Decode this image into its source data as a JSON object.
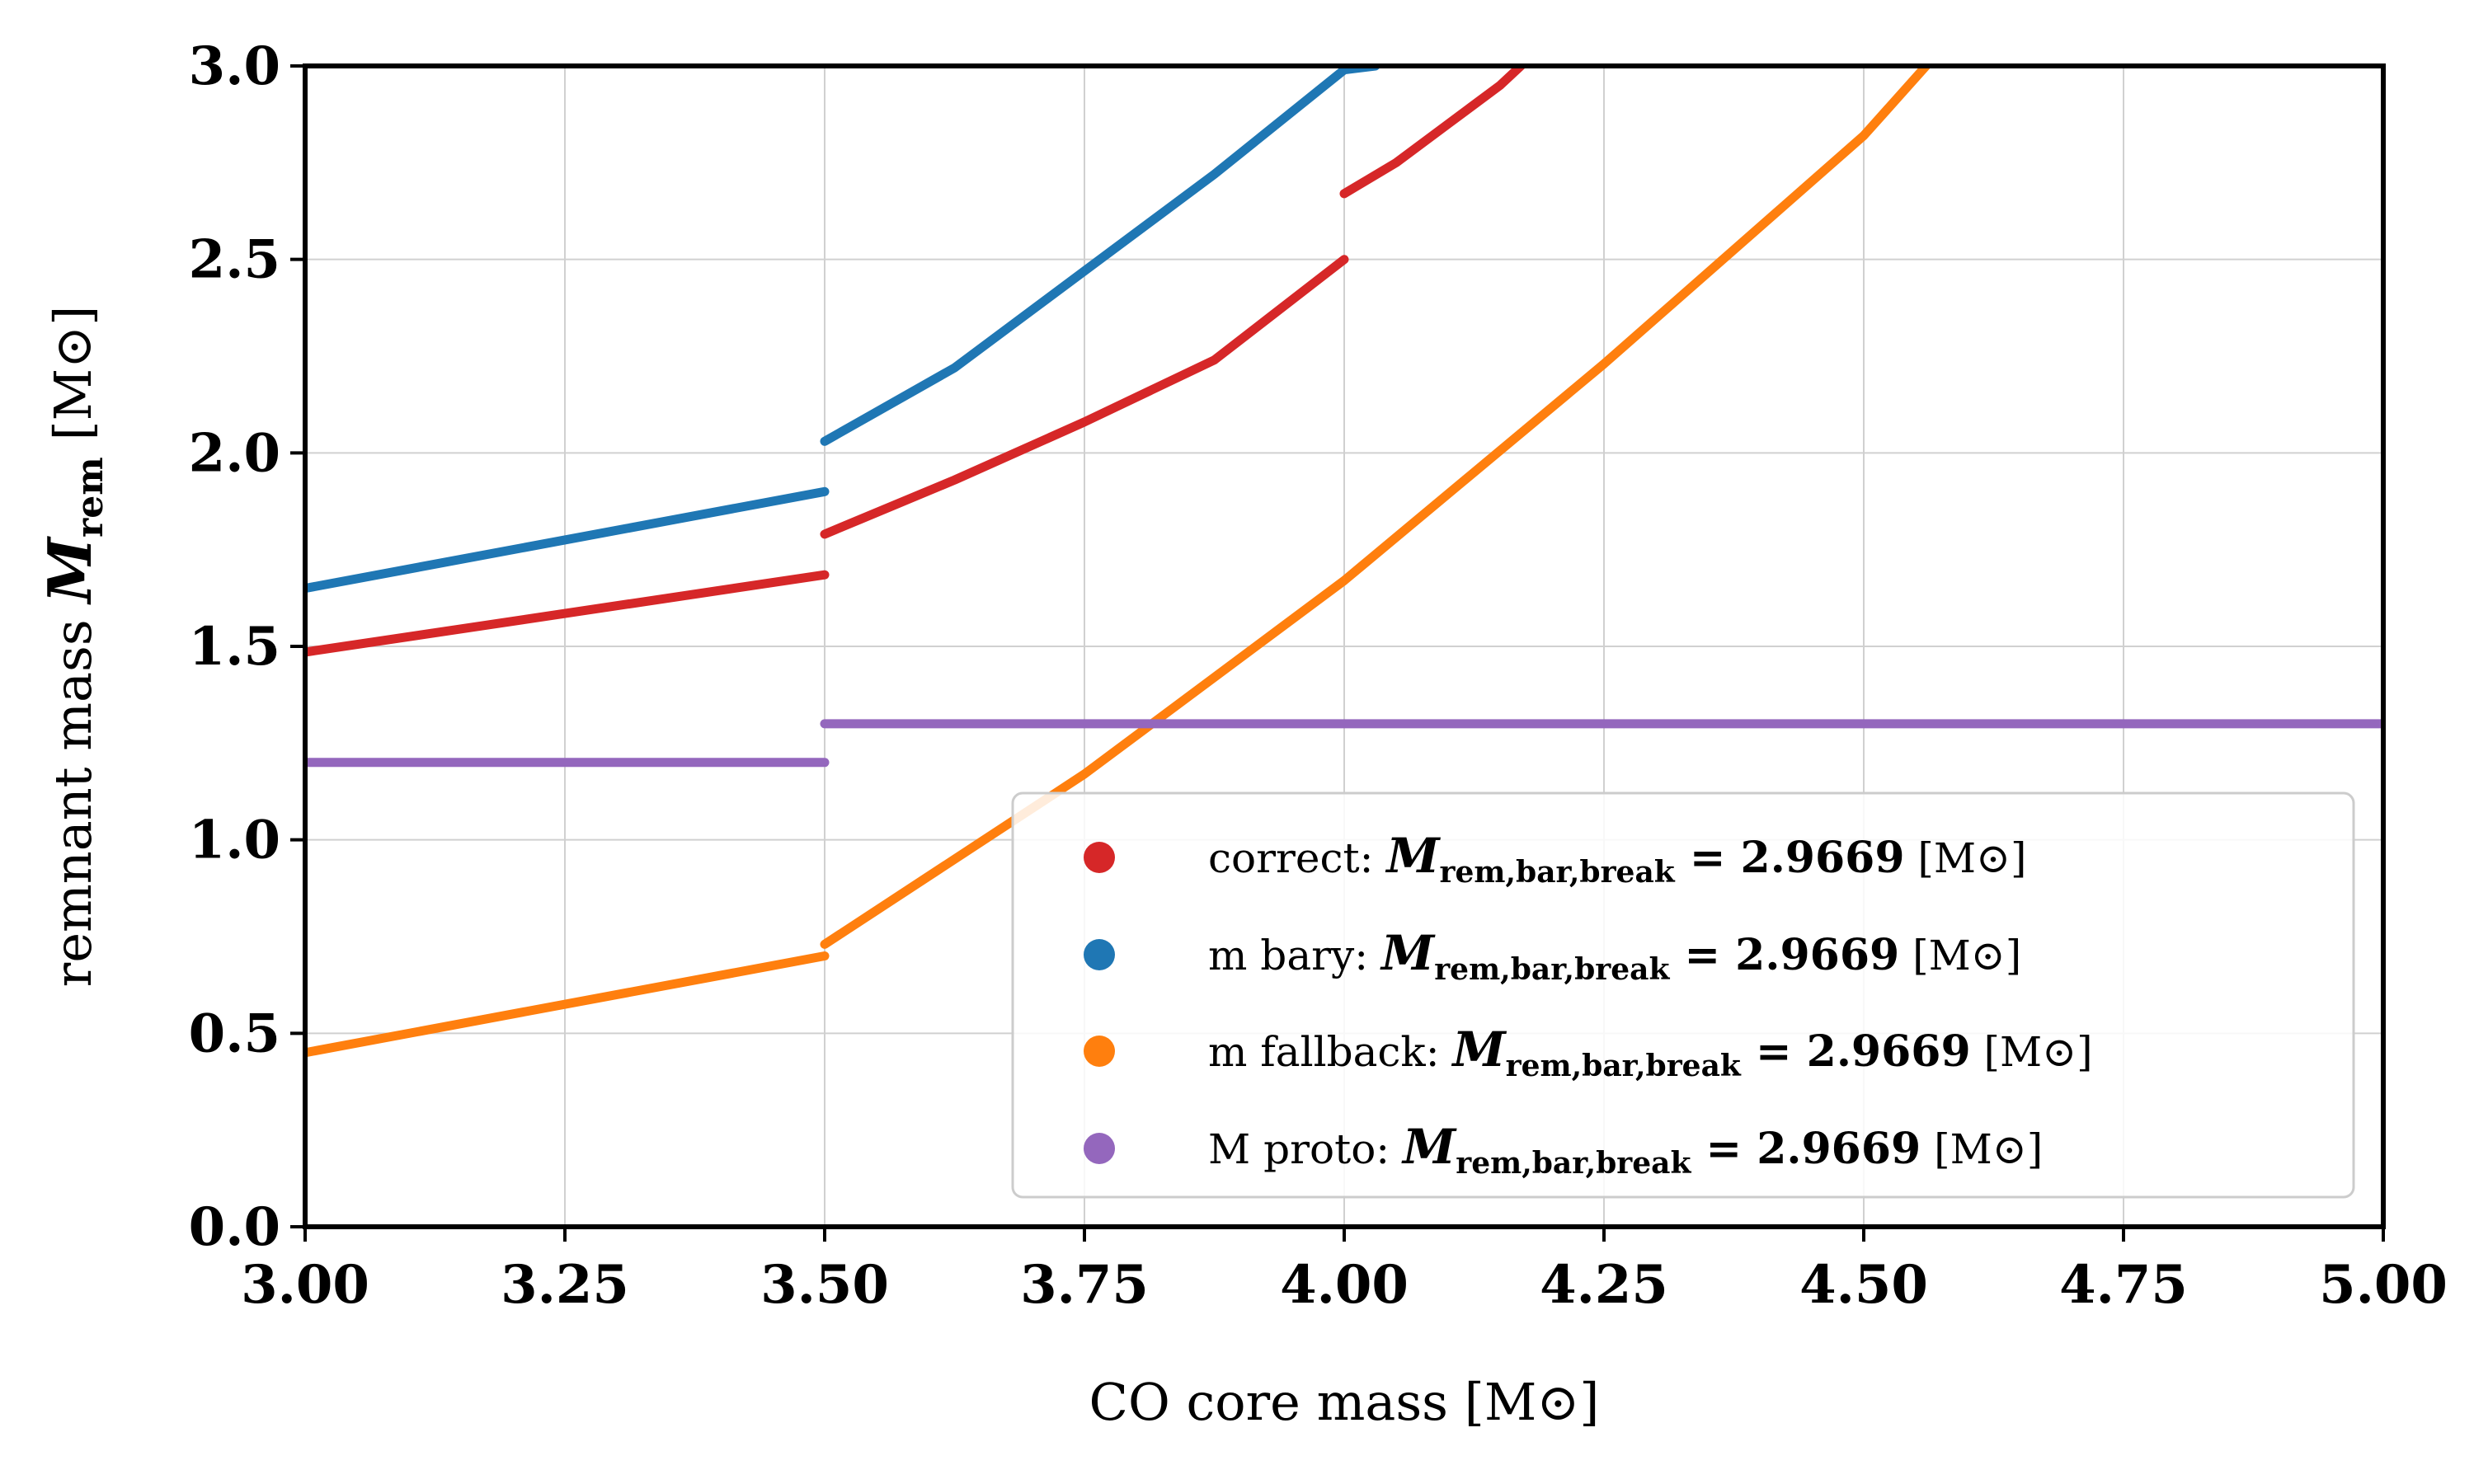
{
  "chart_data": {
    "type": "line",
    "xlabel": "CO core mass [M⊙]",
    "ylabel_prefix": "remnant mass ",
    "ylabel_symbol": "M",
    "ylabel_subscript": "rem",
    "ylabel_unit": " [M⊙]",
    "xlim": [
      3.0,
      5.0
    ],
    "ylim": [
      0.0,
      3.0
    ],
    "xticks": [
      "3.00",
      "3.25",
      "3.50",
      "3.75",
      "4.00",
      "4.25",
      "4.50",
      "4.75",
      "5.00"
    ],
    "xtick_values": [
      3.0,
      3.25,
      3.5,
      3.75,
      4.0,
      4.25,
      4.5,
      4.75,
      5.0
    ],
    "yticks": [
      "0.0",
      "0.5",
      "1.0",
      "1.5",
      "2.0",
      "2.5",
      "3.0"
    ],
    "ytick_values": [
      0.0,
      0.5,
      1.0,
      1.5,
      2.0,
      2.5,
      3.0
    ],
    "grid": true,
    "legend_position": "lower-right",
    "series": [
      {
        "name": "correct",
        "color": "#d62728",
        "segments": [
          [
            [
              3.0,
              1.485
            ],
            [
              3.5,
              1.685
            ]
          ],
          [
            [
              3.5,
              1.79
            ],
            [
              3.625,
              1.93
            ],
            [
              3.75,
              2.08
            ],
            [
              3.875,
              2.24
            ],
            [
              4.0,
              2.5
            ]
          ],
          [
            [
              4.0,
              2.67
            ],
            [
              4.05,
              2.75
            ],
            [
              4.1,
              2.85
            ],
            [
              4.15,
              2.95
            ],
            [
              4.17,
              3.0
            ]
          ]
        ]
      },
      {
        "name": "m bary",
        "color": "#1f77b4",
        "segments": [
          [
            [
              3.0,
              1.65
            ],
            [
              3.5,
              1.9
            ]
          ],
          [
            [
              3.5,
              2.03
            ],
            [
              3.625,
              2.22
            ],
            [
              3.75,
              2.47
            ],
            [
              3.875,
              2.72
            ],
            [
              4.0,
              2.99
            ],
            [
              4.03,
              3.0
            ]
          ]
        ]
      },
      {
        "name": "m fallback",
        "color": "#ff7f0e",
        "segments": [
          [
            [
              3.0,
              0.45
            ],
            [
              3.5,
              0.7
            ]
          ],
          [
            [
              3.5,
              0.73
            ],
            [
              3.75,
              1.17
            ],
            [
              4.0,
              1.67
            ],
            [
              4.25,
              2.23
            ],
            [
              4.5,
              2.82
            ],
            [
              4.56,
              3.0
            ]
          ]
        ]
      },
      {
        "name": "M proto",
        "color": "#9467bd",
        "segments": [
          [
            [
              3.0,
              1.2
            ],
            [
              3.5,
              1.2
            ]
          ],
          [
            [
              3.5,
              1.3
            ],
            [
              5.0,
              1.3
            ]
          ]
        ]
      }
    ],
    "legend": [
      {
        "label": "correct: ",
        "symbol": "M",
        "subscript": "rem,bar,break",
        "value": " = 2.9669",
        "unit": " [M⊙]",
        "color": "#d62728"
      },
      {
        "label": "m bary: ",
        "symbol": "M",
        "subscript": "rem,bar,break",
        "value": " = 2.9669",
        "unit": " [M⊙]",
        "color": "#1f77b4"
      },
      {
        "label": "m fallback: ",
        "symbol": "M",
        "subscript": "rem,bar,break",
        "value": " = 2.9669",
        "unit": " [M⊙]",
        "color": "#ff7f0e"
      },
      {
        "label": "M proto: ",
        "symbol": "M",
        "subscript": "rem,bar,break",
        "value": " = 2.9669",
        "unit": " [M⊙]",
        "color": "#9467bd"
      }
    ]
  }
}
